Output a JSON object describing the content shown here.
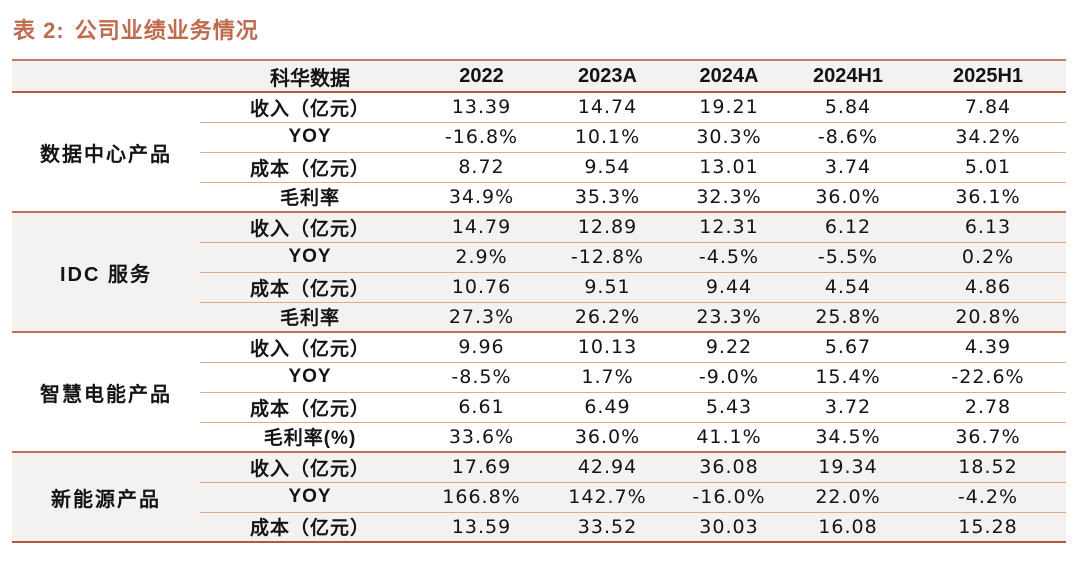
{
  "caption": {
    "prefix": "表 2:",
    "text": "公司业绩业务情况"
  },
  "table": {
    "header": [
      "科华数据",
      "2022",
      "2023A",
      "2024A",
      "2024H1",
      "2025H1"
    ],
    "groups": [
      {
        "name": "数据中心产品",
        "rows": [
          {
            "metric": "收入（亿元）",
            "values": [
              "13.39",
              "14.74",
              "19.21",
              "5.84",
              "7.84"
            ]
          },
          {
            "metric": "YOY",
            "values": [
              "-16.8%",
              "10.1%",
              "30.3%",
              "-8.6%",
              "34.2%"
            ]
          },
          {
            "metric": "成本（亿元）",
            "values": [
              "8.72",
              "9.54",
              "13.01",
              "3.74",
              "5.01"
            ]
          },
          {
            "metric": "毛利率",
            "values": [
              "34.9%",
              "35.3%",
              "32.3%",
              "36.0%",
              "36.1%"
            ]
          }
        ]
      },
      {
        "name": "IDC 服务",
        "rows": [
          {
            "metric": "收入（亿元）",
            "values": [
              "14.79",
              "12.89",
              "12.31",
              "6.12",
              "6.13"
            ]
          },
          {
            "metric": "YOY",
            "values": [
              "2.9%",
              "-12.8%",
              "-4.5%",
              "-5.5%",
              "0.2%"
            ]
          },
          {
            "metric": "成本（亿元）",
            "values": [
              "10.76",
              "9.51",
              "9.44",
              "4.54",
              "4.86"
            ]
          },
          {
            "metric": "毛利率",
            "values": [
              "27.3%",
              "26.2%",
              "23.3%",
              "25.8%",
              "20.8%"
            ]
          }
        ]
      },
      {
        "name": "智慧电能产品",
        "rows": [
          {
            "metric": "收入（亿元）",
            "values": [
              "9.96",
              "10.13",
              "9.22",
              "5.67",
              "4.39"
            ]
          },
          {
            "metric": "YOY",
            "values": [
              "-8.5%",
              "1.7%",
              "-9.0%",
              "15.4%",
              "-22.6%"
            ]
          },
          {
            "metric": "成本（亿元）",
            "values": [
              "6.61",
              "6.49",
              "5.43",
              "3.72",
              "2.78"
            ]
          },
          {
            "metric": "毛利率(%)",
            "values": [
              "33.6%",
              "36.0%",
              "41.1%",
              "34.5%",
              "36.7%"
            ]
          }
        ]
      },
      {
        "name": "新能源产品",
        "rows": [
          {
            "metric": "收入（亿元）",
            "values": [
              "17.69",
              "42.94",
              "36.08",
              "19.34",
              "18.52"
            ]
          },
          {
            "metric": "YOY",
            "values": [
              "166.8%",
              "142.7%",
              "-16.0%",
              "22.0%",
              "-4.2%"
            ]
          },
          {
            "metric": "成本（亿元）",
            "values": [
              "13.59",
              "33.52",
              "30.03",
              "16.08",
              "15.28"
            ]
          }
        ]
      }
    ]
  },
  "colors": {
    "title_accent": "#C06A4E",
    "border_dark": "#B05A3C",
    "border_group": "#C4714F",
    "border_light": "#E2A989",
    "header_bg": "#F4F2F0",
    "stripe_bg": "#F4F2F0",
    "text": "#141414"
  }
}
